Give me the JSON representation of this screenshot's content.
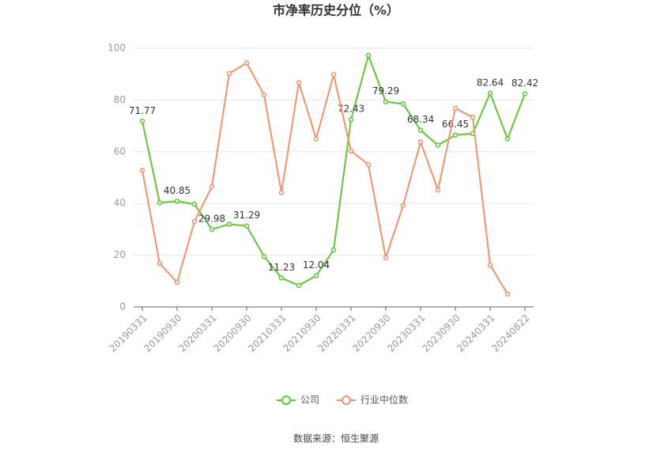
{
  "chart_data": {
    "type": "line",
    "title": "市净率历史分位（%）",
    "categories": [
      "20190331",
      null,
      "20190930",
      null,
      "20200331",
      null,
      "20200930",
      null,
      "20210331",
      null,
      "20210930",
      null,
      "20220331",
      null,
      "20220930",
      null,
      "20230331",
      null,
      "20230930",
      null,
      "20240331",
      null,
      "20240822"
    ],
    "series": [
      {
        "name": "公司",
        "color": "#5ec731",
        "values": [
          71.77,
          40.3,
          40.85,
          39.7,
          29.98,
          32,
          31.29,
          19.5,
          11.23,
          8.3,
          12.04,
          22,
          72.43,
          97.2,
          79.29,
          78.5,
          68.34,
          62.5,
          66.45,
          67,
          82.64,
          65,
          82.42
        ],
        "value_labels": [
          "71.77",
          null,
          "40.85",
          null,
          "29.98",
          null,
          "31.29",
          null,
          "11.23",
          null,
          "12.04",
          null,
          "72.43",
          null,
          "79.29",
          null,
          "68.34",
          null,
          "66.45",
          null,
          "82.64",
          null,
          "82.42"
        ]
      },
      {
        "name": "行业中位数",
        "color": "#f4916a",
        "values": [
          52.8,
          16.8,
          9.5,
          33,
          46.5,
          90.2,
          94.3,
          82,
          44.2,
          86.7,
          65,
          89.8,
          60.3,
          55,
          19,
          39.2,
          63.8,
          45.2,
          76.8,
          73.3,
          16.2,
          5,
          null
        ]
      }
    ],
    "ylim": [
      0,
      100
    ],
    "yticks": [
      0,
      20,
      40,
      60,
      80,
      100
    ],
    "grid": true,
    "legend": "bottom",
    "source": "数据来源：恒生聚源"
  }
}
